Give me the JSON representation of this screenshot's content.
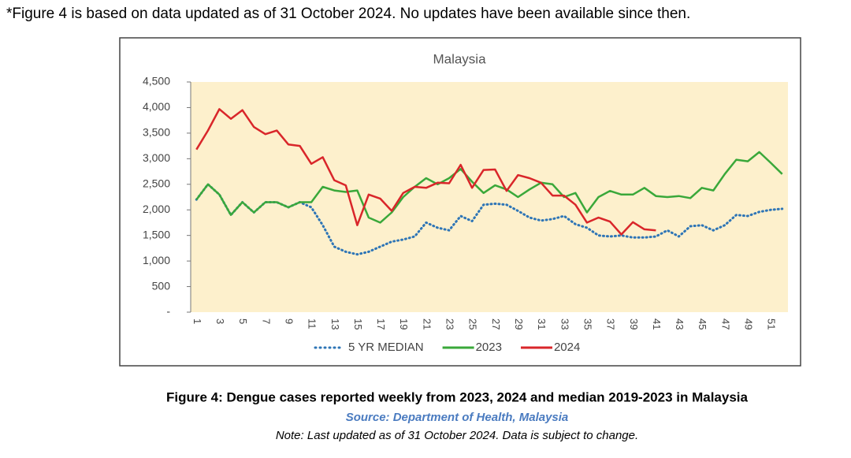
{
  "header_note": "*Figure 4 is based on data updated as of 31 October 2024. No updates have been available since then.",
  "chart_data": {
    "type": "line",
    "title": "Malaysia",
    "categories": [
      "1",
      null,
      "3",
      null,
      "5",
      null,
      "7",
      null,
      "9",
      null,
      "11",
      null,
      "13",
      null,
      "15",
      null,
      "17",
      null,
      "19",
      null,
      "21",
      null,
      "23",
      null,
      "25",
      null,
      "27",
      null,
      "29",
      null,
      "31",
      null,
      "33",
      null,
      "35",
      null,
      "37",
      null,
      "39",
      null,
      "41",
      null,
      "43",
      null,
      "45",
      null,
      "47",
      null,
      "49",
      null,
      "51",
      null
    ],
    "series": [
      {
        "name": "5 YR MEDIAN",
        "color": "#2e75b6",
        "dash": "dotted",
        "values": [
          2200,
          2500,
          2300,
          1900,
          2150,
          1950,
          2150,
          2150,
          2050,
          2150,
          2050,
          1700,
          1280,
          1180,
          1130,
          1180,
          1280,
          1380,
          1420,
          1480,
          1750,
          1650,
          1600,
          1880,
          1780,
          2100,
          2120,
          2100,
          1980,
          1850,
          1790,
          1820,
          1880,
          1720,
          1650,
          1500,
          1480,
          1500,
          1460,
          1460,
          1480,
          1600,
          1480,
          1680,
          1700,
          1600,
          1700,
          1900,
          1880,
          1960,
          2000,
          2020
        ]
      },
      {
        "name": "2023",
        "color": "#3aa83a",
        "values": [
          2200,
          2500,
          2300,
          1900,
          2150,
          1950,
          2150,
          2150,
          2050,
          2150,
          2150,
          2450,
          2380,
          2350,
          2380,
          1850,
          1750,
          1950,
          2250,
          2450,
          2620,
          2500,
          2620,
          2800,
          2550,
          2330,
          2480,
          2400,
          2250,
          2400,
          2530,
          2500,
          2250,
          2330,
          1950,
          2250,
          2370,
          2300,
          2300,
          2430,
          2270,
          2250,
          2270,
          2230,
          2430,
          2380,
          2700,
          2980,
          2950,
          3130,
          2920,
          2700
        ]
      },
      {
        "name": "2024",
        "color": "#d9262a",
        "values": [
          3180,
          3550,
          3970,
          3780,
          3950,
          3620,
          3480,
          3550,
          3280,
          3250,
          2900,
          3030,
          2580,
          2480,
          1700,
          2300,
          2220,
          1980,
          2330,
          2450,
          2430,
          2530,
          2520,
          2880,
          2430,
          2780,
          2790,
          2370,
          2680,
          2620,
          2530,
          2280,
          2280,
          2100,
          1750,
          1850,
          1770,
          1520,
          1760,
          1620,
          1600,
          null,
          null,
          null,
          null,
          null,
          null,
          null,
          null,
          null,
          null,
          null
        ]
      }
    ],
    "ylim": [
      0,
      4500
    ],
    "yticks": [
      {
        "value": 0,
        "label": "-"
      },
      500,
      {
        "value": 1000,
        "label": "1,000"
      },
      {
        "value": 1500,
        "label": "1,500"
      },
      {
        "value": 2000,
        "label": "2,000"
      },
      {
        "value": 2500,
        "label": "2,500"
      },
      {
        "value": 3000,
        "label": "3,000"
      },
      {
        "value": 3500,
        "label": "3,500"
      },
      {
        "value": 4000,
        "label": "4,000"
      },
      {
        "value": 4500,
        "label": "4,500"
      }
    ],
    "plot_background": "#fdf0cc",
    "legend": "bottom"
  },
  "caption": "Figure 4: Dengue cases reported weekly from 2023, 2024 and median 2019-2023 in Malaysia",
  "source": "Source: Department of Health, Malaysia",
  "note": "Note: Last updated as of 31 October 2024. Data is subject to change."
}
